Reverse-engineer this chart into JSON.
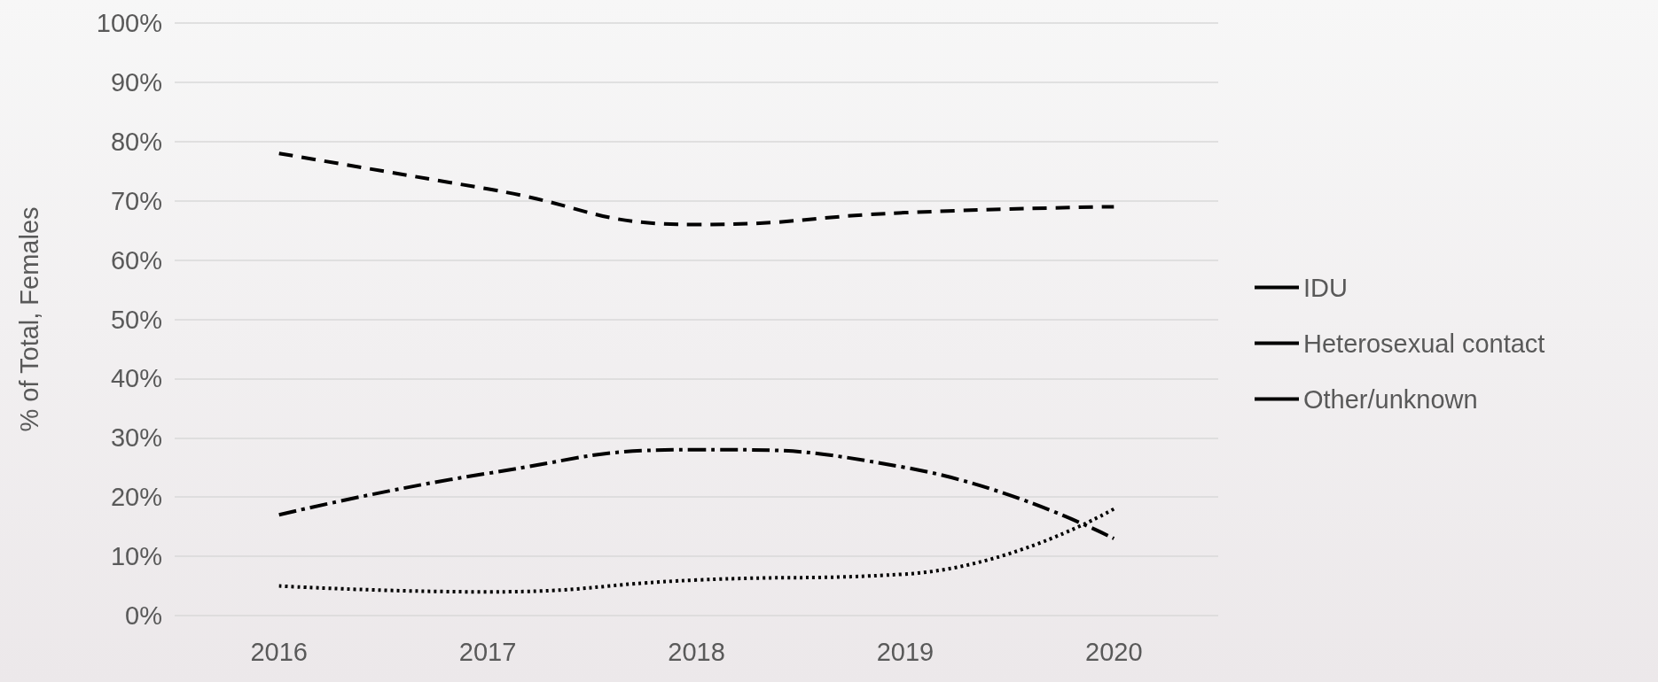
{
  "chart_data": {
    "type": "line",
    "ylabel": "% of Total, Females",
    "categories": [
      "2016",
      "2017",
      "2018",
      "2019",
      "2020"
    ],
    "series": [
      {
        "name": "IDU",
        "color": "#000000",
        "line_style": "dashdot",
        "values": [
          17,
          24,
          28,
          25,
          13
        ]
      },
      {
        "name": "Heterosexual contact",
        "color": "#000000",
        "line_style": "dashed",
        "values": [
          78,
          72,
          66,
          68,
          69
        ]
      },
      {
        "name": "Other/unknown",
        "color": "#000000",
        "line_style": "dotted",
        "values": [
          5,
          4,
          6,
          7,
          18
        ]
      }
    ],
    "ylim": [
      0,
      100
    ],
    "yticks": [
      {
        "value": 0,
        "label": "0%"
      },
      {
        "value": 10,
        "label": "10%"
      },
      {
        "value": 20,
        "label": "20%"
      },
      {
        "value": 30,
        "label": "30%"
      },
      {
        "value": 40,
        "label": "40%"
      },
      {
        "value": 50,
        "label": "50%"
      },
      {
        "value": 60,
        "label": "60%"
      },
      {
        "value": 70,
        "label": "70%"
      },
      {
        "value": 80,
        "label": "80%"
      },
      {
        "value": 90,
        "label": "90%"
      },
      {
        "value": 100,
        "label": "100%"
      }
    ],
    "grid": "y",
    "legend": "right",
    "marker": "none"
  }
}
